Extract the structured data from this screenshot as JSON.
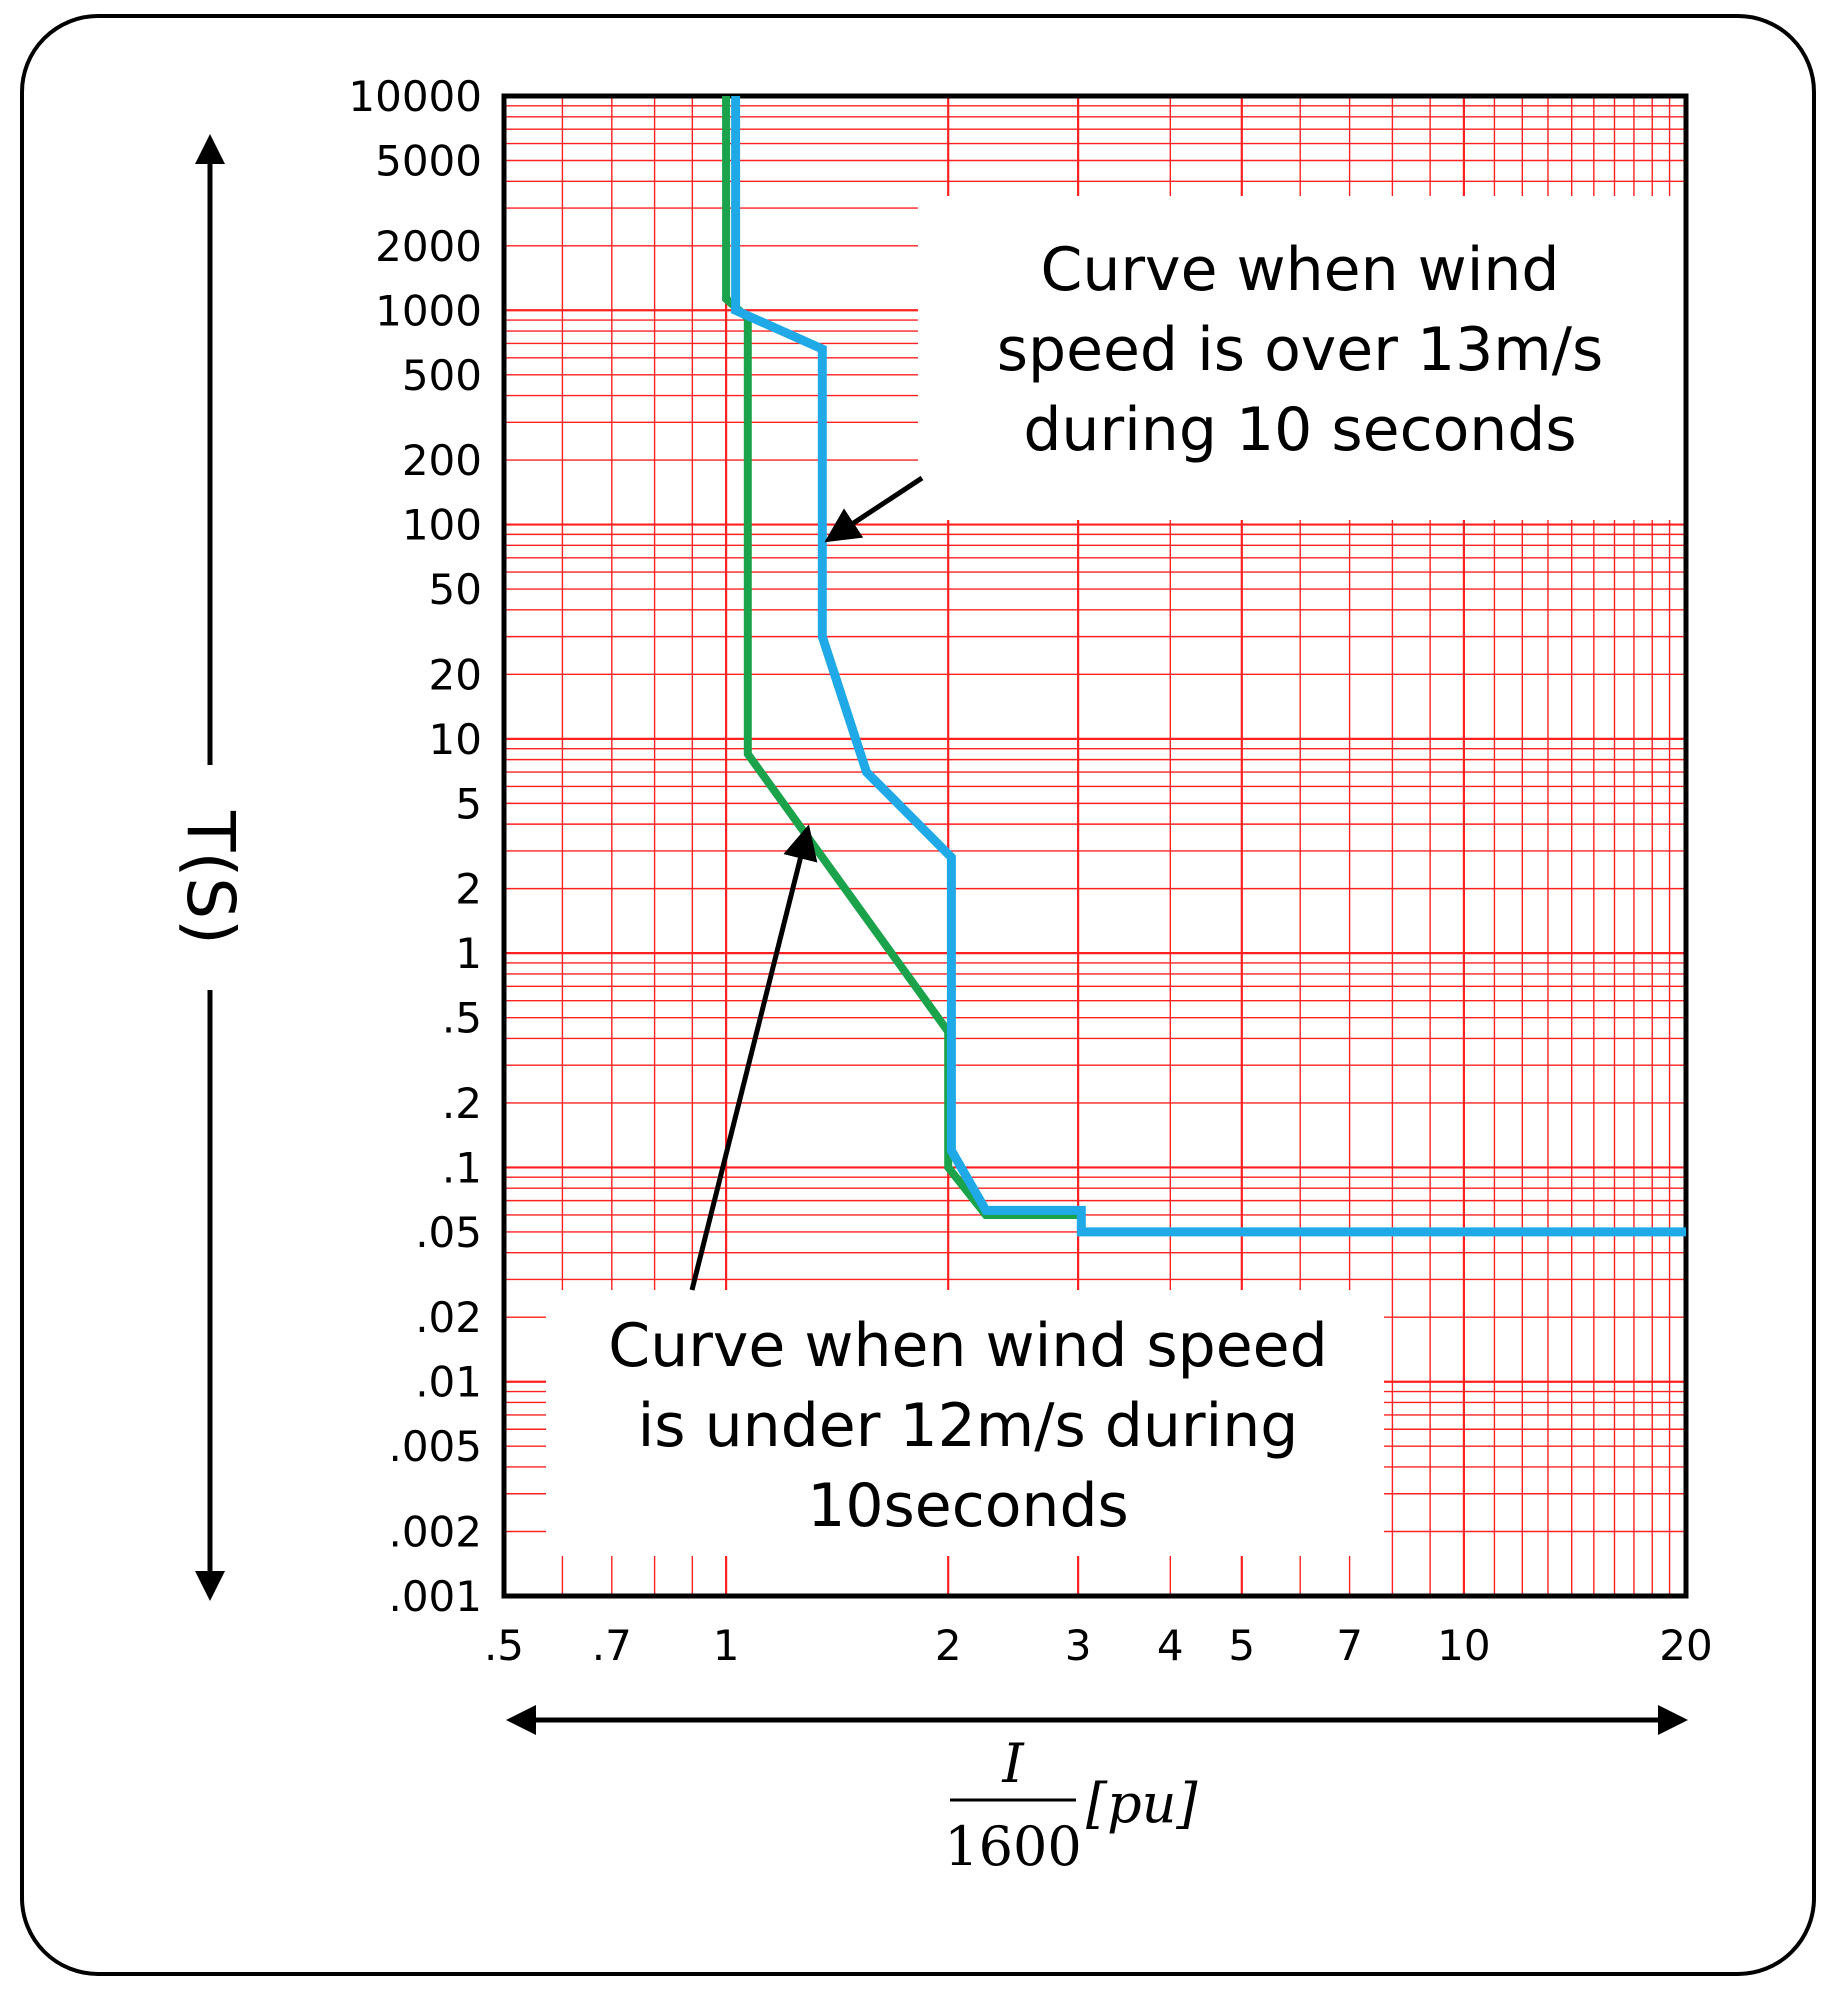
{
  "chart_data": {
    "type": "line",
    "x_scale": "log",
    "y_scale": "log",
    "xlim": [
      0.5,
      20
    ],
    "ylim": [
      0.001,
      10000
    ],
    "xlabel": {
      "numerator": "I",
      "denominator": "1600",
      "unit": "[pu]"
    },
    "ylabel": "T(S)",
    "x_ticks": [
      {
        "value": 0.5,
        "label": ".5"
      },
      {
        "value": 0.7,
        "label": ".7"
      },
      {
        "value": 1,
        "label": "1"
      },
      {
        "value": 2,
        "label": "2"
      },
      {
        "value": 3,
        "label": "3"
      },
      {
        "value": 4,
        "label": "4"
      },
      {
        "value": 5,
        "label": "5"
      },
      {
        "value": 7,
        "label": "7"
      },
      {
        "value": 10,
        "label": "10"
      },
      {
        "value": 20,
        "label": "20"
      }
    ],
    "y_ticks": [
      {
        "value": 10000,
        "label": "10000"
      },
      {
        "value": 5000,
        "label": "5000"
      },
      {
        "value": 2000,
        "label": "2000"
      },
      {
        "value": 1000,
        "label": "1000"
      },
      {
        "value": 500,
        "label": "500"
      },
      {
        "value": 200,
        "label": "200"
      },
      {
        "value": 100,
        "label": "100"
      },
      {
        "value": 50,
        "label": "50"
      },
      {
        "value": 20,
        "label": "20"
      },
      {
        "value": 10,
        "label": "10"
      },
      {
        "value": 5,
        "label": "5"
      },
      {
        "value": 2,
        "label": "2"
      },
      {
        "value": 1,
        "label": "1"
      },
      {
        "value": 0.5,
        "label": ".5"
      },
      {
        "value": 0.2,
        "label": ".2"
      },
      {
        "value": 0.1,
        "label": ".1"
      },
      {
        "value": 0.05,
        "label": ".05"
      },
      {
        "value": 0.02,
        "label": ".02"
      },
      {
        "value": 0.01,
        "label": ".01"
      },
      {
        "value": 0.005,
        "label": ".005"
      },
      {
        "value": 0.002,
        "label": ".002"
      },
      {
        "value": 0.001,
        "label": ".001"
      }
    ],
    "grid": true,
    "series": [
      {
        "name": "Curve when wind speed is under 12m/s during 10seconds",
        "color": "#1aa34a",
        "points": [
          [
            1.0,
            10000
          ],
          [
            1.0,
            1130
          ],
          [
            1.07,
            920
          ],
          [
            1.07,
            8.5
          ],
          [
            2.0,
            0.43
          ],
          [
            2.0,
            0.1
          ],
          [
            2.25,
            0.06
          ],
          [
            3.0,
            0.06
          ]
        ]
      },
      {
        "name": "Curve when wind speed is over 13m/s during 10 seconds",
        "color": "#1fa9e6",
        "points": [
          [
            1.03,
            10000
          ],
          [
            1.03,
            1000
          ],
          [
            1.35,
            660
          ],
          [
            1.35,
            30
          ],
          [
            1.55,
            7
          ],
          [
            2.02,
            2.8
          ],
          [
            2.02,
            0.12
          ],
          [
            2.25,
            0.063
          ],
          [
            3.03,
            0.063
          ],
          [
            3.03,
            0.05
          ],
          [
            20,
            0.05
          ]
        ]
      }
    ],
    "annotations": [
      {
        "target_series": 1,
        "lines": [
          "Curve when wind",
          "speed is over 13m/s",
          "during 10 seconds"
        ],
        "arrow_to": [
          1.35,
          90
        ]
      },
      {
        "target_series": 0,
        "lines": [
          "Curve when wind speed",
          "is under 12m/s during",
          "10seconds"
        ],
        "arrow_to": [
          1.28,
          4.5
        ]
      }
    ]
  },
  "colors": {
    "grid": "#ff2020",
    "axis": "#000000"
  }
}
